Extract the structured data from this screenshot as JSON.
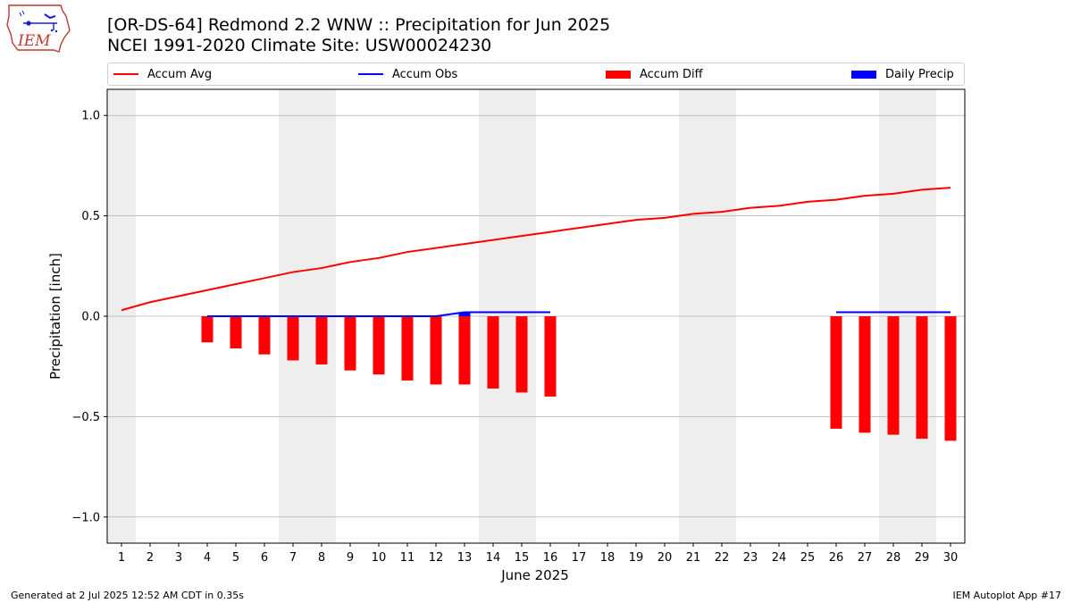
{
  "header": {
    "title_line1": "[OR-DS-64] Redmond 2.2 WNW :: Precipitation for Jun 2025",
    "title_line2": "NCEI 1991-2020 Climate Site: USW00024230",
    "logo_text": "IEM",
    "logo_icon": "iem-iowa-map-logo-icon"
  },
  "footer": {
    "generated": "Generated at 2 Jul 2025 12:52 AM CDT in 0.35s",
    "app": "IEM Autoplot App #17"
  },
  "colors": {
    "accum_avg": "#ff0000",
    "accum_obs": "#0000ff",
    "accum_diff": "#ff0000",
    "daily_precip": "#0000ff",
    "weekend_band": "#eeeeee",
    "grid": "#b0b0b0"
  },
  "chart_data": {
    "type": "bar",
    "title": "[OR-DS-64] Redmond 2.2 WNW :: Precipitation for Jun 2025",
    "subtitle": "NCEI 1991-2020 Climate Site: USW00024230",
    "xlabel": "June 2025",
    "ylabel": "Precipitation [inch]",
    "xlim": [
      0.5,
      30.5
    ],
    "ylim": [
      -1.13,
      1.13
    ],
    "yticks": [
      -1.0,
      -0.5,
      0.0,
      0.5,
      1.0
    ],
    "ytick_labels": [
      "−1.0",
      "−0.5",
      "0.0",
      "0.5",
      "1.0"
    ],
    "x": [
      1,
      2,
      3,
      4,
      5,
      6,
      7,
      8,
      9,
      10,
      11,
      12,
      13,
      14,
      15,
      16,
      17,
      18,
      19,
      20,
      21,
      22,
      23,
      24,
      25,
      26,
      27,
      28,
      29,
      30
    ],
    "grid": "horizontal",
    "legend_placement": "top",
    "legend": [
      "Accum Avg",
      "Accum Obs",
      "Accum Diff",
      "Daily Precip"
    ],
    "weekend_bands": [
      [
        0.5,
        1.5
      ],
      [
        6.5,
        8.5
      ],
      [
        13.5,
        15.5
      ],
      [
        20.5,
        22.5
      ],
      [
        27.5,
        29.5
      ]
    ],
    "series": [
      {
        "name": "Accum Avg",
        "type": "line",
        "x": [
          1,
          2,
          3,
          4,
          5,
          6,
          7,
          8,
          9,
          10,
          11,
          12,
          13,
          14,
          15,
          16,
          17,
          18,
          19,
          20,
          21,
          22,
          23,
          24,
          25,
          26,
          27,
          28,
          29,
          30
        ],
        "values": [
          0.03,
          0.07,
          0.1,
          0.13,
          0.16,
          0.19,
          0.22,
          0.24,
          0.27,
          0.29,
          0.32,
          0.34,
          0.36,
          0.38,
          0.4,
          0.42,
          0.44,
          0.46,
          0.48,
          0.49,
          0.51,
          0.52,
          0.54,
          0.55,
          0.57,
          0.58,
          0.6,
          0.61,
          0.63,
          0.64
        ]
      },
      {
        "name": "Accum Obs",
        "type": "line",
        "segments": [
          {
            "x": [
              4,
              5,
              6,
              7,
              8,
              9,
              10,
              11,
              12,
              13,
              14,
              15,
              16
            ],
            "values": [
              0,
              0,
              0,
              0,
              0,
              0,
              0,
              0,
              0,
              0.02,
              0.02,
              0.02,
              0.02
            ]
          },
          {
            "x": [
              26,
              27,
              28,
              29,
              30
            ],
            "values": [
              0.02,
              0.02,
              0.02,
              0.02,
              0.02
            ]
          }
        ]
      },
      {
        "name": "Accum Diff",
        "type": "bar",
        "x": [
          4,
          5,
          6,
          7,
          8,
          9,
          10,
          11,
          12,
          13,
          14,
          15,
          16,
          26,
          27,
          28,
          29,
          30
        ],
        "values": [
          -0.13,
          -0.16,
          -0.19,
          -0.22,
          -0.24,
          -0.27,
          -0.29,
          -0.32,
          -0.34,
          -0.34,
          -0.36,
          -0.38,
          -0.4,
          -0.56,
          -0.58,
          -0.59,
          -0.61,
          -0.62
        ]
      },
      {
        "name": "Daily Precip",
        "type": "bar",
        "x": [
          13
        ],
        "values": [
          0.02
        ]
      }
    ]
  }
}
